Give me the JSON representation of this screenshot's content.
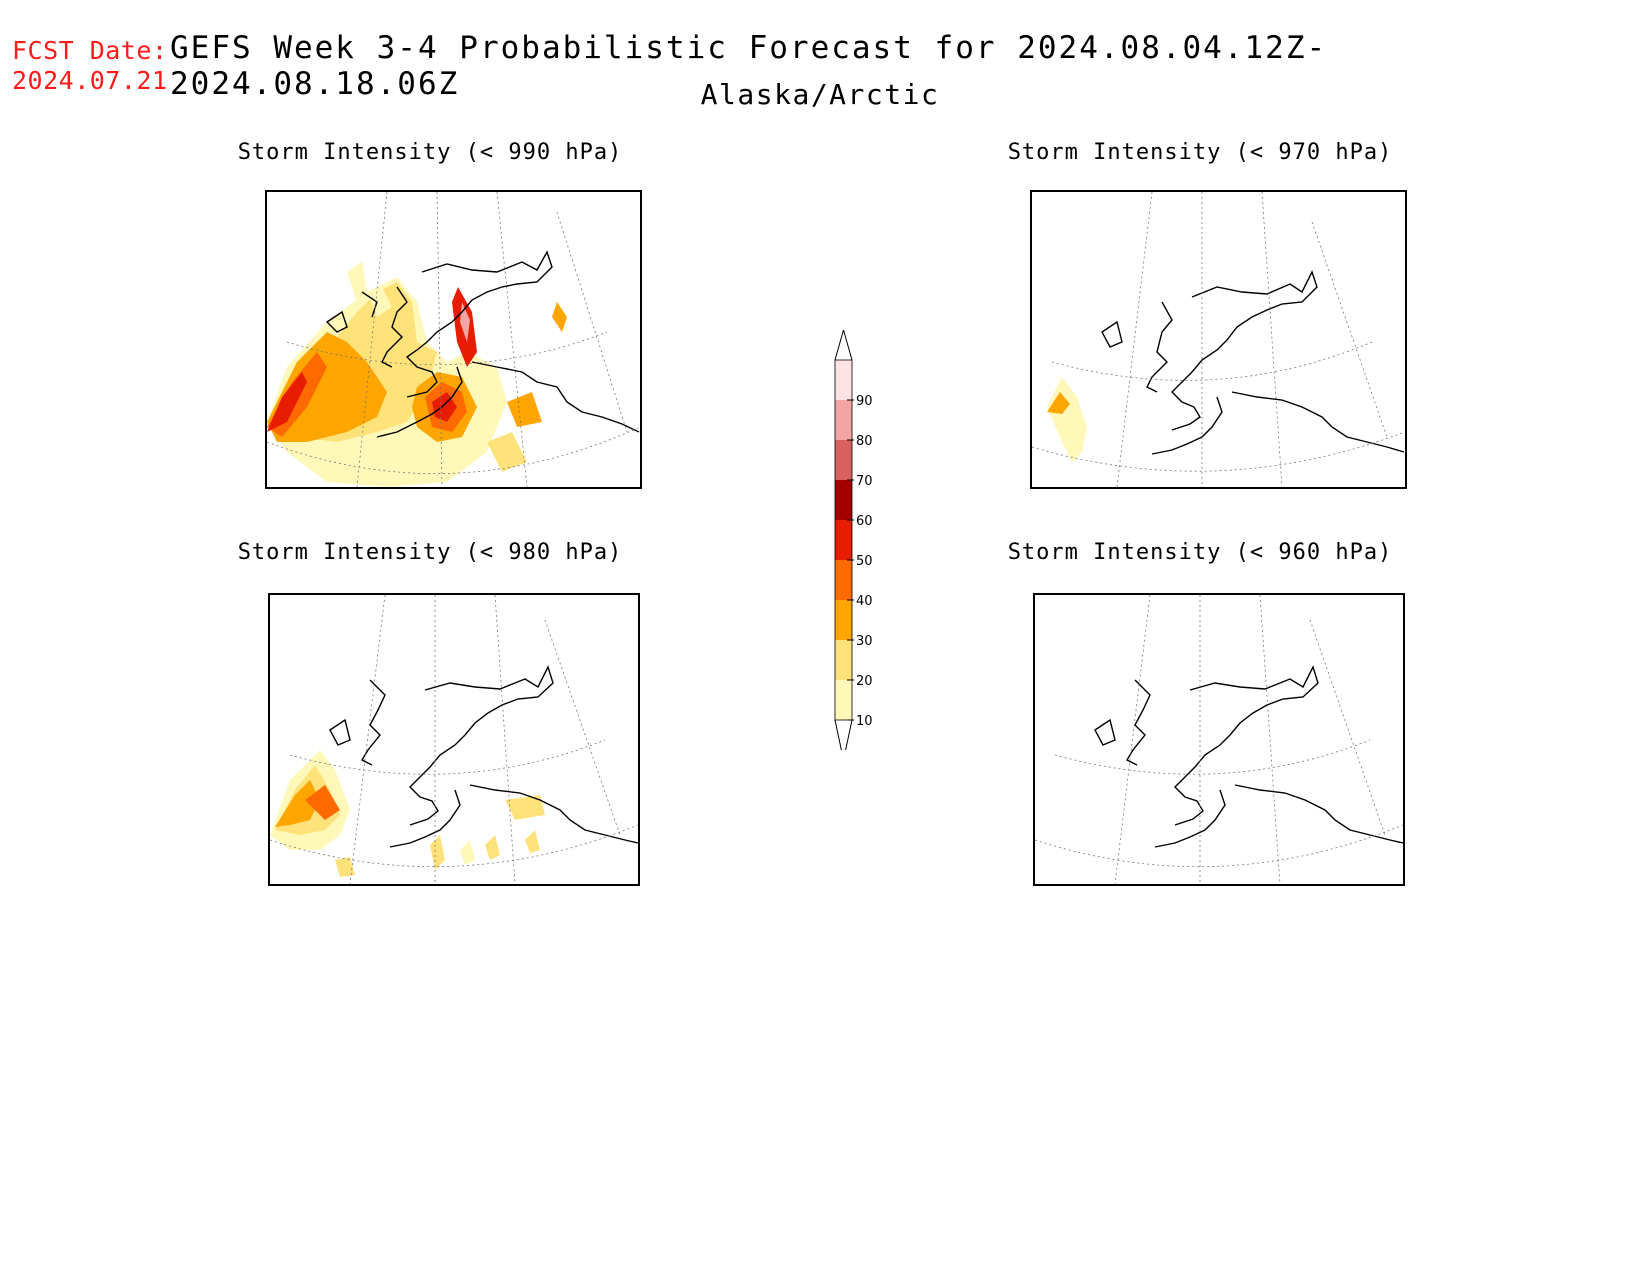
{
  "header": {
    "fcst_label": "FCST Date:",
    "fcst_date": "2024.07.21",
    "title": "GEFS Week 3-4 Probabilistic Forecast for 2024.08.04.12Z-2024.08.18.06Z",
    "subtitle": "Alaska/Arctic"
  },
  "panels": [
    {
      "title": "Storm Intensity (< 990 hPa)"
    },
    {
      "title": "Storm Intensity (< 970 hPa)"
    },
    {
      "title": "Storm Intensity (< 980 hPa)"
    },
    {
      "title": "Storm Intensity (< 960 hPa)"
    }
  ],
  "colorbar": {
    "levels": [
      "10",
      "20",
      "30",
      "40",
      "50",
      "60",
      "70",
      "80",
      "90"
    ],
    "colors": [
      "#fff8b8",
      "#ffe27a",
      "#ffa500",
      "#ff6a00",
      "#e81c00",
      "#a50000",
      "#d96060",
      "#f2a5a5",
      "#fde3e3"
    ]
  }
}
